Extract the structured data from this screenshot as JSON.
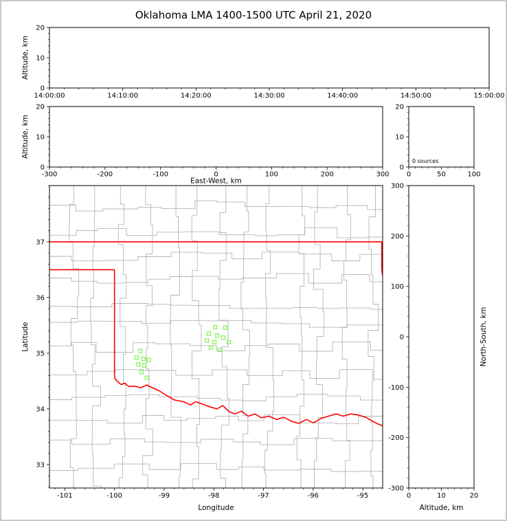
{
  "title": "Oklahoma LMA 1400-1500 UTC April 21, 2020",
  "colors": {
    "frame": "#000000",
    "county": "#b5b5b5",
    "state_border": "#ff0000",
    "station": "#7cf24e",
    "background": "#ffffff",
    "outer_border": "#c9c9c9"
  },
  "chart_data": [
    {
      "type": "scatter",
      "name": "time-height",
      "ylabel": "Altitude, km",
      "xlim_seconds": [
        0,
        3600
      ],
      "xtick_labels": [
        "14:00:00",
        "14:10:00",
        "14:20:00",
        "14:30:00",
        "14:40:00",
        "14:50:00",
        "15:00:00"
      ],
      "ylim": [
        0,
        20
      ],
      "yticks": [
        0,
        10,
        20
      ],
      "points": []
    },
    {
      "type": "scatter",
      "name": "ew-height",
      "xlabel": "East-West, km",
      "ylabel": "Altitude, km",
      "xlim": [
        -300,
        300
      ],
      "xticks": [
        -300,
        -200,
        -100,
        0,
        100,
        200,
        300
      ],
      "ylim": [
        0,
        20
      ],
      "yticks": [
        0,
        10,
        20
      ],
      "points": []
    },
    {
      "type": "histogram",
      "name": "altitude-histogram",
      "annotation": "0 sources",
      "xlim": [
        0,
        100
      ],
      "xticks": [
        0,
        50,
        100
      ],
      "ylim": [
        0,
        20
      ],
      "yticks": [
        0,
        10,
        20
      ],
      "values": []
    },
    {
      "type": "map-scatter",
      "name": "plan-view",
      "xlabel": "Longitude",
      "ylabel": "Latitude",
      "xlim": [
        -101.31,
        -94.6
      ],
      "xticks": [
        -101,
        -100,
        -99,
        -98,
        -97,
        -96,
        -95
      ],
      "ylim": [
        32.58,
        38.01
      ],
      "yticks": [
        33,
        34,
        35,
        36,
        37
      ],
      "stations": [
        [
          -97.97,
          35.47
        ],
        [
          -97.77,
          35.46
        ],
        [
          -98.1,
          35.35
        ],
        [
          -97.93,
          35.32
        ],
        [
          -97.81,
          35.28
        ],
        [
          -98.14,
          35.23
        ],
        [
          -97.99,
          35.2
        ],
        [
          -97.7,
          35.2
        ],
        [
          -98.06,
          35.1
        ],
        [
          -97.88,
          35.06
        ],
        [
          -99.48,
          35.04
        ],
        [
          -99.56,
          34.92
        ],
        [
          -99.42,
          34.9
        ],
        [
          -99.31,
          34.88
        ],
        [
          -99.52,
          34.8
        ],
        [
          -99.4,
          34.78
        ],
        [
          -99.46,
          34.66
        ],
        [
          -99.35,
          34.56
        ]
      ],
      "state_border": [
        [
          [
            -103,
            37
          ],
          [
            -94.618,
            37
          ]
        ],
        [
          [
            -94.618,
            37
          ],
          [
            -94.618,
            36.5
          ],
          [
            -94.43,
            35.39
          ]
        ],
        [
          [
            -103,
            36.5
          ],
          [
            -100,
            36.5
          ]
        ],
        [
          [
            -100,
            36.5
          ],
          [
            -100,
            34.563
          ]
        ]
      ],
      "red_river": [
        [
          -100.0,
          34.56
        ],
        [
          -99.95,
          34.5
        ],
        [
          -99.87,
          34.44
        ],
        [
          -99.79,
          34.46
        ],
        [
          -99.71,
          34.4
        ],
        [
          -99.6,
          34.41
        ],
        [
          -99.47,
          34.38
        ],
        [
          -99.35,
          34.43
        ],
        [
          -99.21,
          34.37
        ],
        [
          -99.09,
          34.32
        ],
        [
          -98.95,
          34.24
        ],
        [
          -98.79,
          34.16
        ],
        [
          -98.61,
          34.13
        ],
        [
          -98.47,
          34.07
        ],
        [
          -98.37,
          34.13
        ],
        [
          -98.24,
          34.09
        ],
        [
          -98.09,
          34.04
        ],
        [
          -97.94,
          34.0
        ],
        [
          -97.82,
          34.06
        ],
        [
          -97.69,
          33.95
        ],
        [
          -97.57,
          33.91
        ],
        [
          -97.44,
          33.96
        ],
        [
          -97.31,
          33.87
        ],
        [
          -97.17,
          33.91
        ],
        [
          -97.04,
          33.84
        ],
        [
          -96.89,
          33.87
        ],
        [
          -96.74,
          33.81
        ],
        [
          -96.59,
          33.85
        ],
        [
          -96.44,
          33.78
        ],
        [
          -96.29,
          33.74
        ],
        [
          -96.14,
          33.81
        ],
        [
          -95.99,
          33.75
        ],
        [
          -95.84,
          33.83
        ],
        [
          -95.69,
          33.87
        ],
        [
          -95.54,
          33.91
        ],
        [
          -95.39,
          33.87
        ],
        [
          -95.24,
          33.91
        ],
        [
          -95.09,
          33.89
        ],
        [
          -94.94,
          33.85
        ],
        [
          -94.79,
          33.77
        ],
        [
          -94.67,
          33.72
        ],
        [
          -94.6,
          33.7
        ]
      ]
    },
    {
      "type": "scatter",
      "name": "ns-height",
      "xlabel": "Altitude, km",
      "ylabel_right": "North-South, km",
      "xlim": [
        0,
        20
      ],
      "xticks": [
        0,
        10,
        20
      ],
      "ylim": [
        -300,
        300
      ],
      "yticks": [
        -300,
        -200,
        -100,
        0,
        100,
        200,
        300
      ],
      "points": []
    }
  ]
}
